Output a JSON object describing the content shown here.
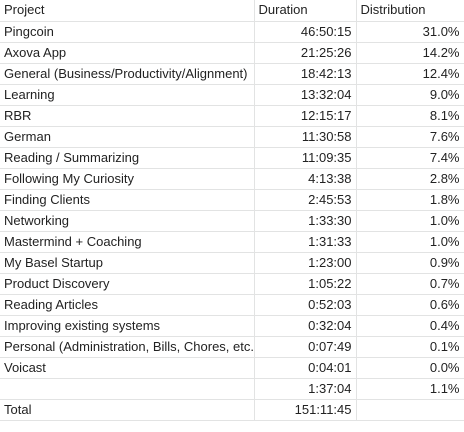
{
  "headers": {
    "project": "Project",
    "duration": "Duration",
    "distribution": "Distribution"
  },
  "rows": [
    {
      "project": "Pingcoin",
      "duration": "46:50:15",
      "distribution": "31.0%"
    },
    {
      "project": "Axova App",
      "duration": "21:25:26",
      "distribution": "14.2%"
    },
    {
      "project": "General (Business/Productivity/Alignment)",
      "duration": "18:42:13",
      "distribution": "12.4%"
    },
    {
      "project": "Learning",
      "duration": "13:32:04",
      "distribution": "9.0%"
    },
    {
      "project": "RBR",
      "duration": "12:15:17",
      "distribution": "8.1%"
    },
    {
      "project": "German",
      "duration": "11:30:58",
      "distribution": "7.6%"
    },
    {
      "project": "Reading / Summarizing",
      "duration": "11:09:35",
      "distribution": "7.4%"
    },
    {
      "project": "Following My Curiosity",
      "duration": "4:13:38",
      "distribution": "2.8%"
    },
    {
      "project": "Finding Clients",
      "duration": "2:45:53",
      "distribution": "1.8%"
    },
    {
      "project": "Networking",
      "duration": "1:33:30",
      "distribution": "1.0%"
    },
    {
      "project": "Mastermind + Coaching",
      "duration": "1:31:33",
      "distribution": "1.0%"
    },
    {
      "project": "My Basel Startup",
      "duration": "1:23:00",
      "distribution": "0.9%"
    },
    {
      "project": "Product Discovery",
      "duration": "1:05:22",
      "distribution": "0.7%"
    },
    {
      "project": "Reading Articles",
      "duration": "0:52:03",
      "distribution": "0.6%"
    },
    {
      "project": "Improving existing systems",
      "duration": "0:32:04",
      "distribution": "0.4%"
    },
    {
      "project": "Personal (Administration, Bills, Chores, etc.",
      "duration": "0:07:49",
      "distribution": "0.1%"
    },
    {
      "project": "Voicast",
      "duration": "0:04:01",
      "distribution": "0.0%"
    },
    {
      "project": "",
      "duration": "1:37:04",
      "distribution": "1.1%"
    }
  ],
  "total": {
    "label": "Total",
    "duration": "151:11:45",
    "distribution": ""
  }
}
